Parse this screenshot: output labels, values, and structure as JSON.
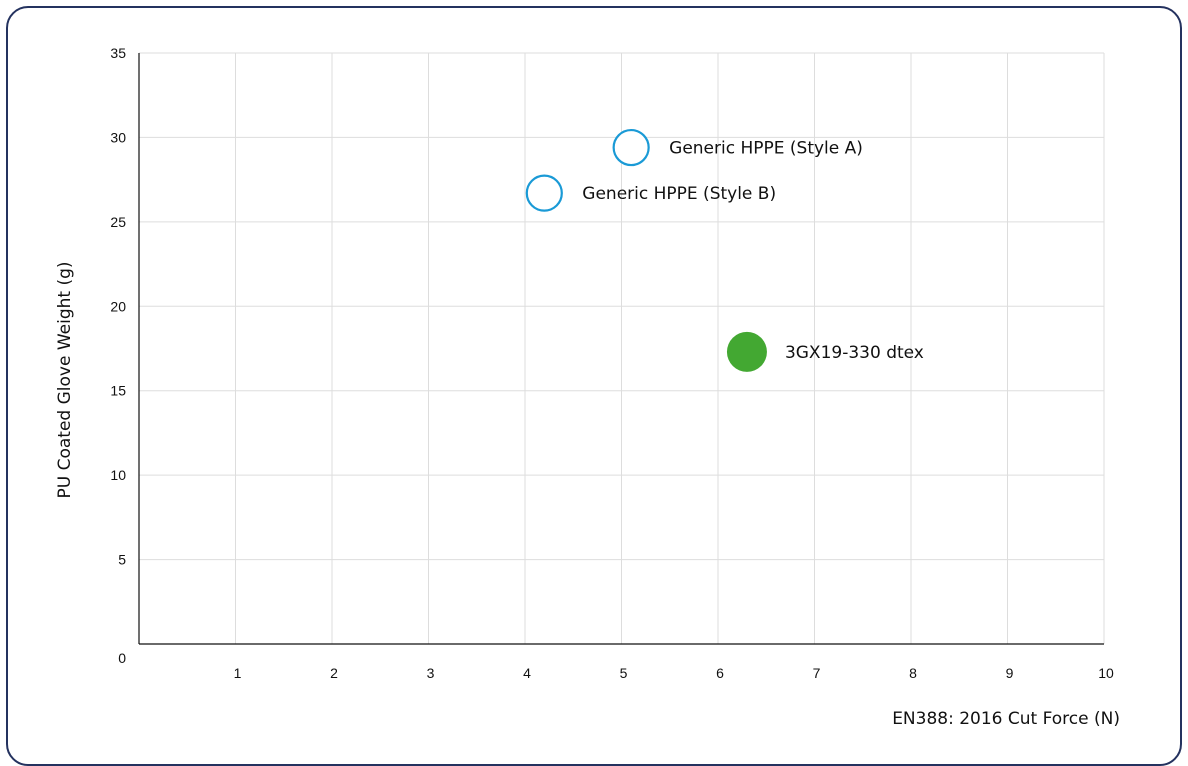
{
  "chart_data": {
    "type": "scatter",
    "title": "",
    "xlabel": "EN388: 2016 Cut Force (N)",
    "ylabel": "PU Coated Glove Weight (g)",
    "xlim": [
      0,
      10
    ],
    "ylim": [
      0,
      35
    ],
    "x_ticks": [
      "1",
      "2",
      "3",
      "4",
      "5",
      "6",
      "7",
      "8",
      "9",
      "10"
    ],
    "y_ticks": [
      "0",
      "5",
      "10",
      "15",
      "20",
      "25",
      "30",
      "35"
    ],
    "grid": true,
    "points": [
      {
        "label": "Generic HPPE (Style A)",
        "x": 5.1,
        "y": 29.4,
        "style": "hollow",
        "color": "#1a9ad6"
      },
      {
        "label": "Generic HPPE (Style B)",
        "x": 4.2,
        "y": 26.7,
        "style": "hollow",
        "color": "#1a9ad6"
      },
      {
        "label": "3GX19-330 dtex",
        "x": 6.3,
        "y": 17.3,
        "style": "filled",
        "color": "#43a832"
      }
    ]
  },
  "colors": {
    "frame_border": "#24325f",
    "grid": "#dddddd",
    "axis": "#111111"
  }
}
